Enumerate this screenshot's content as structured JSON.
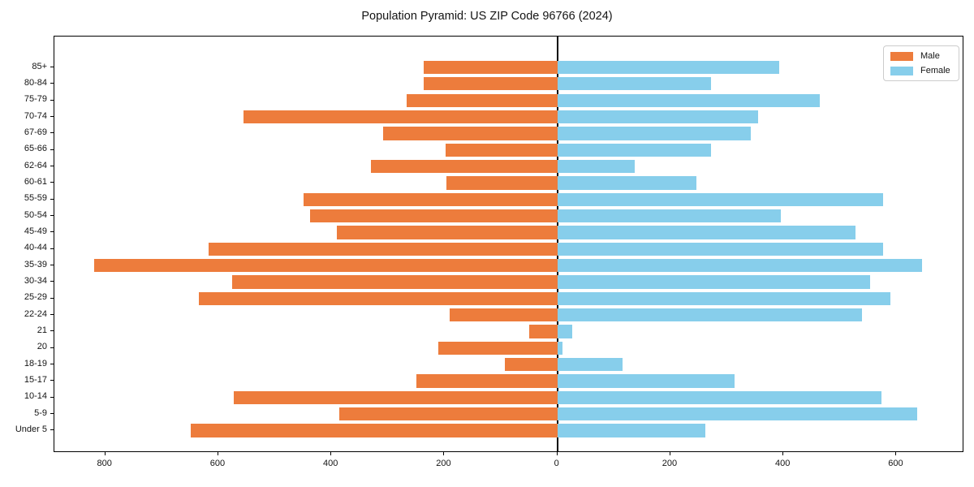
{
  "title": "Population Pyramid: US ZIP Code 96766 (2024)",
  "legend": {
    "male_label": "Male",
    "female_label": "Female"
  },
  "colors": {
    "male": "#ed7c3c",
    "female": "#87ceeb",
    "axis": "#000000",
    "text": "#141414",
    "legend_border": "#cccccc"
  },
  "chart_data": {
    "type": "bar",
    "variant": "population-pyramid",
    "title": "Population Pyramid: US ZIP Code 96766 (2024)",
    "categories_top_to_bottom": [
      "85+",
      "80-84",
      "75-79",
      "70-74",
      "67-69",
      "65-66",
      "62-64",
      "60-61",
      "55-59",
      "50-54",
      "45-49",
      "40-44",
      "35-39",
      "30-34",
      "25-29",
      "22-24",
      "21",
      "20",
      "18-19",
      "15-17",
      "10-14",
      "5-9",
      "Under 5"
    ],
    "series": [
      {
        "name": "Male",
        "side": "left",
        "values": [
          237,
          237,
          266,
          555,
          309,
          198,
          330,
          197,
          449,
          438,
          390,
          617,
          820,
          576,
          635,
          190,
          50,
          210,
          93,
          250,
          572,
          386,
          648
        ]
      },
      {
        "name": "Female",
        "side": "right",
        "values": [
          393,
          272,
          465,
          355,
          343,
          272,
          137,
          246,
          577,
          395,
          528,
          577,
          645,
          554,
          590,
          539,
          27,
          9,
          116,
          313,
          574,
          637,
          262
        ]
      }
    ],
    "x_ticks": [
      -800,
      -600,
      -400,
      -200,
      0,
      200,
      400,
      600
    ],
    "x_tick_labels": [
      "800",
      "600",
      "400",
      "200",
      "0",
      "200",
      "400",
      "600"
    ],
    "xlim": [
      -890,
      720
    ],
    "grid": false,
    "legend_position": "upper-right",
    "legend_entries": [
      "Male",
      "Female"
    ]
  }
}
